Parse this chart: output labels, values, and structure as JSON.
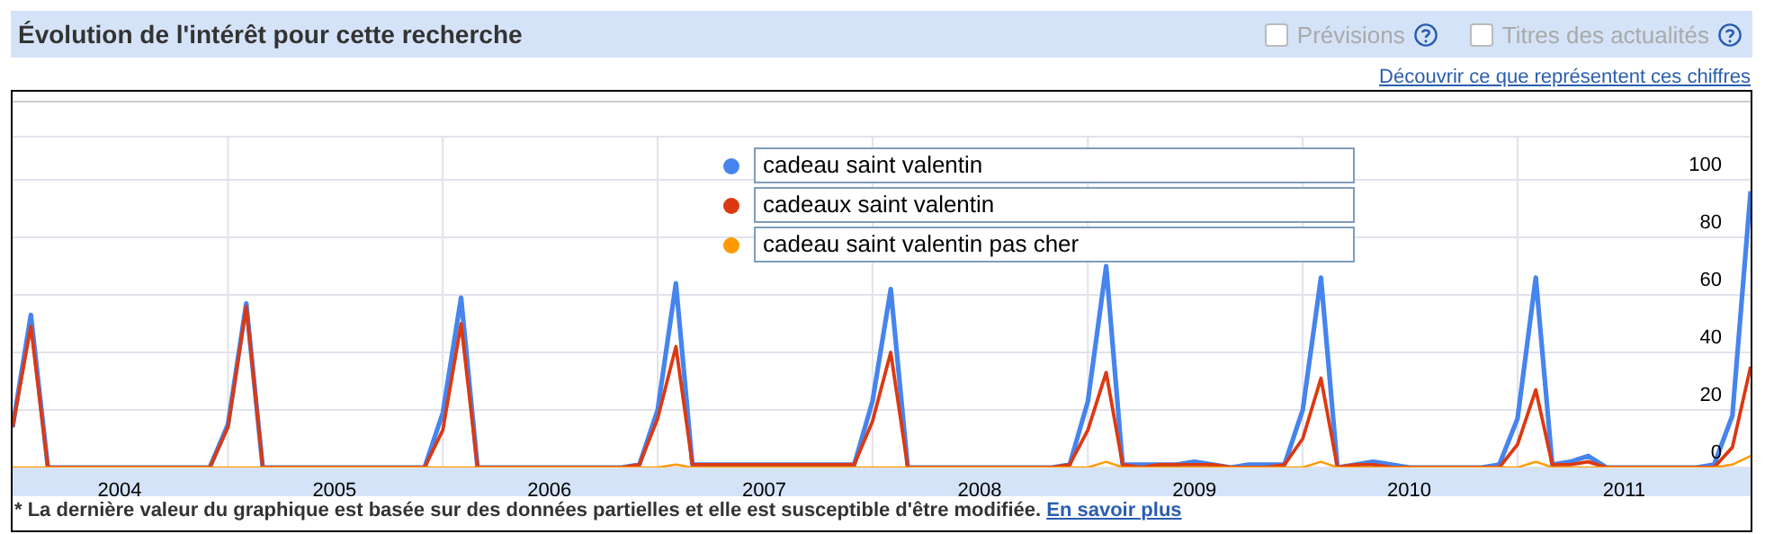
{
  "chart_data": {
    "type": "line",
    "title": "Évolution de l'intérêt pour cette recherche",
    "annotations": [
      "Prévisions",
      "Titres des actualités",
      "Découvrir ce que représentent ces chiffres",
      "* La dernière valeur du graphique est basée sur des données partielles et elle est susceptible d'être modifiée.",
      "En savoir plus"
    ],
    "x": [
      "2004-01",
      "2004-02",
      "2004-03",
      "2004-04",
      "2004-05",
      "2004-06",
      "2004-07",
      "2004-08",
      "2004-09",
      "2004-10",
      "2004-11",
      "2004-12",
      "2005-01",
      "2005-02",
      "2005-03",
      "2005-04",
      "2005-05",
      "2005-06",
      "2005-07",
      "2005-08",
      "2005-09",
      "2005-10",
      "2005-11",
      "2005-12",
      "2006-01",
      "2006-02",
      "2006-03",
      "2006-04",
      "2006-05",
      "2006-06",
      "2006-07",
      "2006-08",
      "2006-09",
      "2006-10",
      "2006-11",
      "2006-12",
      "2007-01",
      "2007-02",
      "2007-03",
      "2007-04",
      "2007-05",
      "2007-06",
      "2007-07",
      "2007-08",
      "2007-09",
      "2007-10",
      "2007-11",
      "2007-12",
      "2008-01",
      "2008-02",
      "2008-03",
      "2008-04",
      "2008-05",
      "2008-06",
      "2008-07",
      "2008-08",
      "2008-09",
      "2008-10",
      "2008-11",
      "2008-12",
      "2009-01",
      "2009-02",
      "2009-03",
      "2009-04",
      "2009-05",
      "2009-06",
      "2009-07",
      "2009-08",
      "2009-09",
      "2009-10",
      "2009-11",
      "2009-12",
      "2010-01",
      "2010-02",
      "2010-03",
      "2010-04",
      "2010-05",
      "2010-06",
      "2010-07",
      "2010-08",
      "2010-09",
      "2010-10",
      "2010-11",
      "2010-12",
      "2011-01",
      "2011-02",
      "2011-03",
      "2011-04",
      "2011-05",
      "2011-06",
      "2011-07",
      "2011-08",
      "2011-09",
      "2011-10",
      "2011-11",
      "2011-12",
      "2012-01",
      "2012-02"
    ],
    "series": [
      {
        "name": "cadeau saint valentin",
        "color": "#4684ee",
        "values": [
          14,
          53,
          0,
          0,
          0,
          0,
          0,
          0,
          0,
          0,
          0,
          0,
          15,
          57,
          0,
          0,
          0,
          0,
          0,
          0,
          0,
          0,
          0,
          0,
          19,
          59,
          0,
          0,
          0,
          0,
          0,
          0,
          0,
          0,
          0,
          1,
          20,
          64,
          1,
          1,
          1,
          1,
          1,
          1,
          1,
          1,
          1,
          1,
          23,
          62,
          0,
          0,
          0,
          0,
          0,
          0,
          0,
          0,
          0,
          1,
          23,
          70,
          1,
          1,
          1,
          1,
          2,
          1,
          0,
          1,
          1,
          1,
          20,
          66,
          0,
          1,
          2,
          1,
          0,
          0,
          0,
          0,
          0,
          1,
          17,
          66,
          1,
          2,
          4,
          0,
          0,
          0,
          0,
          0,
          0,
          1,
          18,
          96
        ]
      },
      {
        "name": "cadeaux saint valentin",
        "color": "#dc3912",
        "values": [
          14,
          49,
          0,
          0,
          0,
          0,
          0,
          0,
          0,
          0,
          0,
          0,
          14,
          56,
          0,
          0,
          0,
          0,
          0,
          0,
          0,
          0,
          0,
          0,
          13,
          50,
          0,
          0,
          0,
          0,
          0,
          0,
          0,
          0,
          0,
          1,
          17,
          42,
          1,
          1,
          1,
          1,
          1,
          1,
          1,
          1,
          1,
          1,
          16,
          40,
          0,
          0,
          0,
          0,
          0,
          0,
          0,
          0,
          0,
          1,
          13,
          33,
          1,
          0,
          1,
          1,
          1,
          1,
          0,
          0,
          0,
          1,
          10,
          31,
          0,
          1,
          1,
          0,
          0,
          0,
          0,
          0,
          0,
          0,
          8,
          27,
          1,
          1,
          2,
          0,
          0,
          0,
          0,
          0,
          0,
          0,
          7,
          35
        ]
      },
      {
        "name": "cadeau saint valentin pas cher",
        "color": "#ff9900",
        "values": [
          0,
          0,
          0,
          0,
          0,
          0,
          0,
          0,
          0,
          0,
          0,
          0,
          0,
          0,
          0,
          0,
          0,
          0,
          0,
          0,
          0,
          0,
          0,
          0,
          0,
          0,
          0,
          0,
          0,
          0,
          0,
          0,
          0,
          0,
          0,
          0,
          0,
          1,
          0,
          0,
          0,
          0,
          0,
          0,
          0,
          0,
          0,
          0,
          0,
          0,
          0,
          0,
          0,
          0,
          0,
          0,
          0,
          0,
          0,
          0,
          0,
          2,
          0,
          0,
          0,
          0,
          0,
          0,
          0,
          0,
          0,
          0,
          0,
          2,
          0,
          0,
          0,
          0,
          0,
          0,
          0,
          0,
          0,
          0,
          0,
          2,
          0,
          0,
          0,
          0,
          0,
          0,
          0,
          0,
          0,
          0,
          1,
          4
        ]
      }
    ],
    "xlim": [
      "2004-01",
      "2012-02"
    ],
    "xticks": [
      {
        "value": "2004-07",
        "label": "2004"
      },
      {
        "value": "2005-01",
        "label": null
      },
      {
        "value": "2005-07",
        "label": "2005"
      },
      {
        "value": "2006-01",
        "label": null
      },
      {
        "value": "2006-07",
        "label": "2006"
      },
      {
        "value": "2007-01",
        "label": null
      },
      {
        "value": "2007-07",
        "label": "2007"
      },
      {
        "value": "2008-01",
        "label": null
      },
      {
        "value": "2008-07",
        "label": "2008"
      },
      {
        "value": "2009-01",
        "label": null
      },
      {
        "value": "2009-07",
        "label": "2009"
      },
      {
        "value": "2010-01",
        "label": null
      },
      {
        "value": "2010-07",
        "label": "2010"
      },
      {
        "value": "2011-01",
        "label": null
      },
      {
        "value": "2011-07",
        "label": "2011"
      }
    ],
    "ylim": [
      0,
      115
    ],
    "yticks": [
      0,
      20,
      40,
      60,
      80,
      100
    ],
    "grid": true,
    "legend": "top",
    "marker": "none",
    "line_style": "solid"
  }
}
